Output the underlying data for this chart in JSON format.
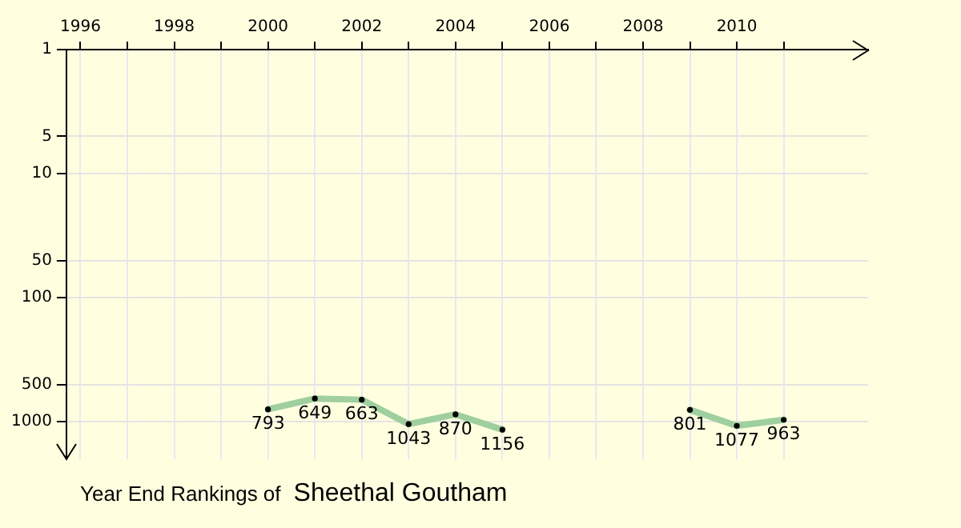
{
  "chart_data": {
    "type": "line",
    "title": "Year End Rankings of",
    "subtitle": "Sheethal Goutham",
    "x": [
      2000,
      2001,
      2002,
      2003,
      2004,
      2005,
      2006,
      2007,
      2008,
      2009,
      2010,
      2011
    ],
    "series": [
      {
        "color": "#9fcf9f",
        "values": [
          793,
          649,
          663,
          1043,
          870,
          1156,
          null,
          null,
          null,
          801,
          1077,
          963
        ]
      }
    ],
    "xlim": [
      1995.7,
      2012.8
    ],
    "xticks": [
      1996,
      {
        "value": 1997,
        "label": null
      },
      1998,
      {
        "value": 1999,
        "label": null
      },
      2000,
      {
        "value": 2001,
        "label": null
      },
      2002,
      {
        "value": 2003,
        "label": null
      },
      2004,
      {
        "value": 2005,
        "label": null
      },
      2006,
      {
        "value": 2007,
        "label": null
      },
      2008,
      {
        "value": 2009,
        "label": null
      },
      2010,
      {
        "value": 2011,
        "label": null
      }
    ],
    "ylim": [
      2000,
      1
    ],
    "yticks": [
      1,
      5,
      10,
      50,
      100,
      500,
      1000
    ],
    "log": "y",
    "grid": true,
    "legend": false,
    "marker": "circle",
    "line_style": "solid",
    "data_labels": true
  }
}
